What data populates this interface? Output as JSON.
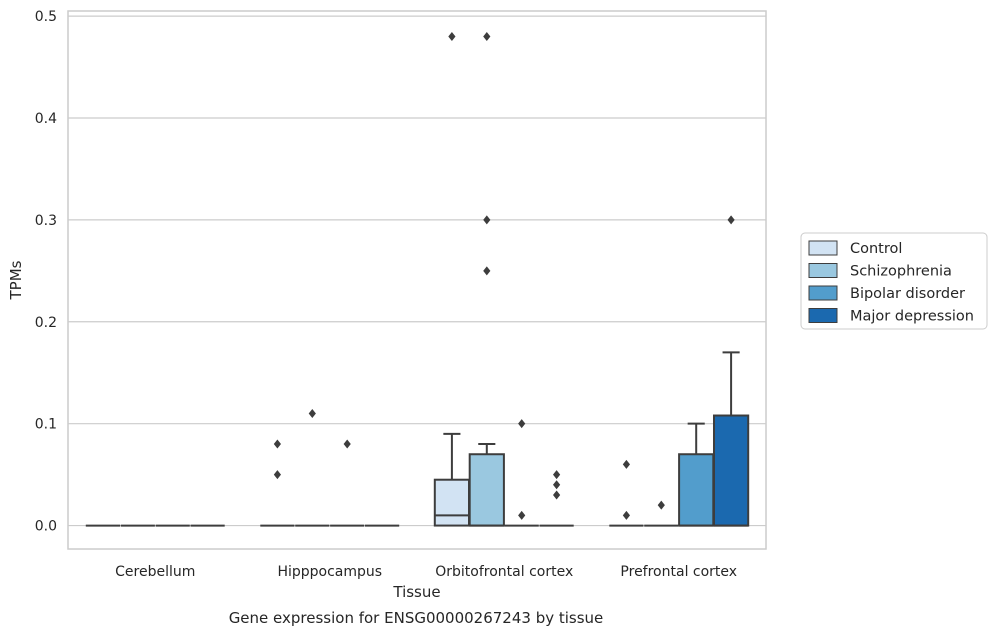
{
  "chart_data": {
    "type": "box",
    "caption": "Gene expression for ENSG00000267243 by tissue",
    "xlabel": "Tissue",
    "ylabel": "TPMs",
    "ylim": [
      -0.023,
      0.505
    ],
    "yticks": [
      0.0,
      0.1,
      0.2,
      0.3,
      0.4,
      0.5
    ],
    "ytick_labels": [
      "0.0",
      "0.1",
      "0.2",
      "0.3",
      "0.4",
      "0.5"
    ],
    "grid": "horizontal",
    "legend_position": "right",
    "categories": [
      "Cerebellum",
      "Hipppocampus",
      "Orbitofrontal cortex",
      "Prefrontal cortex"
    ],
    "series": [
      {
        "name": "Control",
        "color": "#d2e3f3",
        "boxes": [
          {
            "q1": 0,
            "median": 0,
            "q3": 0,
            "whislo": 0,
            "whishi": 0,
            "fliers": []
          },
          {
            "q1": 0,
            "median": 0,
            "q3": 0,
            "whislo": 0,
            "whishi": 0,
            "fliers": [
              0.08,
              0.05
            ]
          },
          {
            "q1": 0,
            "median": 0.01,
            "q3": 0.045,
            "whislo": 0,
            "whishi": 0.09,
            "fliers": [
              0.48
            ]
          },
          {
            "q1": 0,
            "median": 0,
            "q3": 0,
            "whislo": 0,
            "whishi": 0,
            "fliers": [
              0.06,
              0.01
            ]
          }
        ]
      },
      {
        "name": "Schizophrenia",
        "color": "#9ac8e0",
        "boxes": [
          {
            "q1": 0,
            "median": 0,
            "q3": 0,
            "whislo": 0,
            "whishi": 0,
            "fliers": []
          },
          {
            "q1": 0,
            "median": 0,
            "q3": 0,
            "whislo": 0,
            "whishi": 0,
            "fliers": [
              0.11
            ]
          },
          {
            "q1": 0,
            "median": 0,
            "q3": 0.07,
            "whislo": 0,
            "whishi": 0.08,
            "fliers": [
              0.48,
              0.3,
              0.25
            ]
          },
          {
            "q1": 0,
            "median": 0,
            "q3": 0,
            "whislo": 0,
            "whishi": 0,
            "fliers": [
              0.02
            ]
          }
        ]
      },
      {
        "name": "Bipolar disorder",
        "color": "#529dcc",
        "boxes": [
          {
            "q1": 0,
            "median": 0,
            "q3": 0,
            "whislo": 0,
            "whishi": 0,
            "fliers": []
          },
          {
            "q1": 0,
            "median": 0,
            "q3": 0,
            "whislo": 0,
            "whishi": 0,
            "fliers": [
              0.08
            ]
          },
          {
            "q1": 0,
            "median": 0,
            "q3": 0,
            "whislo": 0,
            "whishi": 0,
            "fliers": [
              0.1,
              0.01
            ]
          },
          {
            "q1": 0,
            "median": 0,
            "q3": 0.07,
            "whislo": 0,
            "whishi": 0.1,
            "fliers": []
          }
        ]
      },
      {
        "name": "Major depression",
        "color": "#1b69af",
        "boxes": [
          {
            "q1": 0,
            "median": 0,
            "q3": 0,
            "whislo": 0,
            "whishi": 0,
            "fliers": []
          },
          {
            "q1": 0,
            "median": 0,
            "q3": 0,
            "whislo": 0,
            "whishi": 0,
            "fliers": []
          },
          {
            "q1": 0,
            "median": 0,
            "q3": 0,
            "whislo": 0,
            "whishi": 0,
            "fliers": [
              0.05,
              0.04,
              0.03
            ]
          },
          {
            "q1": 0,
            "median": 0,
            "q3": 0.108,
            "whislo": 0,
            "whishi": 0.17,
            "fliers": [
              0.3
            ]
          }
        ]
      }
    ]
  }
}
